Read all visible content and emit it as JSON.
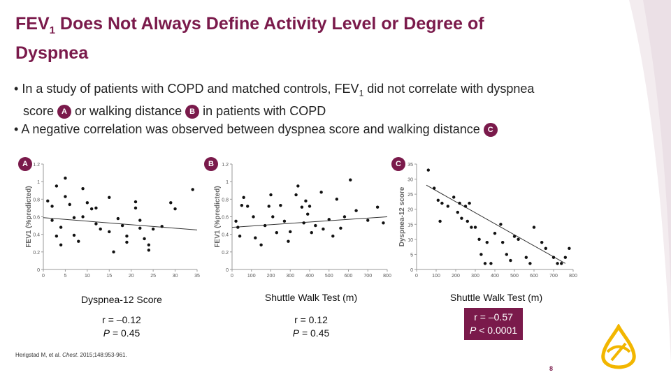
{
  "slide": {
    "title_main": "FEV",
    "title_sub": "1",
    "title_rest": " Does Not Always Define Activity Level or Degree of",
    "title_line2": "Dyspnea",
    "bullet1": {
      "bullet": "•",
      "part1": "In a study of patients with COPD and matched controls, FEV",
      "sub": "1",
      "part2": " did not correlate with dyspnea",
      "line2a": "score",
      "line2b": "or walking distance",
      "line2c": "in patients with COPD"
    },
    "bullet2": {
      "bullet": "•",
      "text": "A negative correlation was observed between dyspnea score and walking distance"
    },
    "badges": {
      "a": "A",
      "b": "B",
      "c": "C"
    },
    "citation_pre": "Herigstad M, et al. ",
    "citation_journal": "Chest",
    "citation_post": ". 2015;148:953-961.",
    "page_number": "8",
    "accent_color": "#7a1a4b",
    "logo_color": "#f2b600"
  },
  "chart_data": [
    {
      "type": "scatter",
      "badge": "A",
      "title": "",
      "xlabel": "Dyspnea-12 Score",
      "ylabel": "FEV1 (%predicted)",
      "xlim": [
        0,
        35
      ],
      "ylim": [
        0,
        1.2
      ],
      "x_ticks": [
        "0",
        "5",
        "10",
        "15",
        "20",
        "25",
        "30",
        "35"
      ],
      "y_ticks": [
        "0",
        "0.2",
        "0.4",
        "0.6",
        "0.8",
        "1",
        "1.2"
      ],
      "trend": [
        [
          0,
          0.59
        ],
        [
          35,
          0.45
        ]
      ],
      "points": [
        [
          1,
          0.78
        ],
        [
          2,
          0.72
        ],
        [
          2,
          0.56
        ],
        [
          3,
          0.95
        ],
        [
          3,
          0.38
        ],
        [
          4,
          0.28
        ],
        [
          4,
          0.48
        ],
        [
          5,
          1.04
        ],
        [
          5,
          0.83
        ],
        [
          6,
          0.74
        ],
        [
          7,
          0.59
        ],
        [
          7,
          0.39
        ],
        [
          8,
          0.32
        ],
        [
          9,
          0.92
        ],
        [
          9,
          0.6
        ],
        [
          10,
          0.76
        ],
        [
          11,
          0.69
        ],
        [
          12,
          0.52
        ],
        [
          12,
          0.7
        ],
        [
          13,
          0.46
        ],
        [
          15,
          0.82
        ],
        [
          15,
          0.43
        ],
        [
          16,
          0.2
        ],
        [
          17,
          0.58
        ],
        [
          18,
          0.5
        ],
        [
          19,
          0.38
        ],
        [
          19,
          0.31
        ],
        [
          21,
          0.77
        ],
        [
          21,
          0.7
        ],
        [
          22,
          0.56
        ],
        [
          22,
          0.47
        ],
        [
          23,
          0.35
        ],
        [
          24,
          0.28
        ],
        [
          24,
          0.22
        ],
        [
          25,
          0.46
        ],
        [
          27,
          0.49
        ],
        [
          29,
          0.76
        ],
        [
          30,
          0.69
        ],
        [
          34,
          0.91
        ]
      ],
      "stat_r": "r = –0.12",
      "stat_p_label": "P",
      "stat_p_value": " = 0.45"
    },
    {
      "type": "scatter",
      "badge": "B",
      "title": "",
      "xlabel": "Shuttle Walk Test (m)",
      "ylabel": "FEV1 (%predicted)",
      "xlim": [
        0,
        800
      ],
      "ylim": [
        0,
        1.2
      ],
      "x_ticks": [
        "0",
        "100",
        "200",
        "300",
        "400",
        "500",
        "600",
        "700",
        "800"
      ],
      "y_ticks": [
        "0",
        "0.2",
        "0.4",
        "0.6",
        "0.8",
        "1",
        "1.2"
      ],
      "trend": [
        [
          0,
          0.48
        ],
        [
          800,
          0.6
        ]
      ],
      "points": [
        [
          20,
          0.55
        ],
        [
          30,
          0.48
        ],
        [
          40,
          0.38
        ],
        [
          50,
          0.73
        ],
        [
          60,
          0.82
        ],
        [
          80,
          0.72
        ],
        [
          110,
          0.6
        ],
        [
          120,
          0.36
        ],
        [
          150,
          0.28
        ],
        [
          170,
          0.5
        ],
        [
          190,
          0.72
        ],
        [
          200,
          0.85
        ],
        [
          210,
          0.6
        ],
        [
          230,
          0.42
        ],
        [
          250,
          0.73
        ],
        [
          270,
          0.55
        ],
        [
          290,
          0.32
        ],
        [
          300,
          0.43
        ],
        [
          330,
          0.85
        ],
        [
          340,
          0.95
        ],
        [
          360,
          0.71
        ],
        [
          370,
          0.53
        ],
        [
          380,
          0.78
        ],
        [
          390,
          0.63
        ],
        [
          400,
          0.72
        ],
        [
          410,
          0.42
        ],
        [
          430,
          0.5
        ],
        [
          460,
          0.88
        ],
        [
          470,
          0.46
        ],
        [
          500,
          0.57
        ],
        [
          520,
          0.38
        ],
        [
          540,
          0.8
        ],
        [
          560,
          0.47
        ],
        [
          580,
          0.6
        ],
        [
          610,
          1.02
        ],
        [
          640,
          0.67
        ],
        [
          700,
          0.56
        ],
        [
          750,
          0.71
        ],
        [
          780,
          0.53
        ]
      ],
      "stat_r": "r = 0.12",
      "stat_p_label": "P",
      "stat_p_value": " = 0.45"
    },
    {
      "type": "scatter",
      "badge": "C",
      "title": "",
      "xlabel": "Shuttle Walk Test (m)",
      "ylabel": "Dyspnea-12 score",
      "xlim": [
        0,
        800
      ],
      "ylim": [
        0,
        35
      ],
      "x_ticks": [
        "0",
        "100",
        "200",
        "300",
        "400",
        "500",
        "600",
        "700",
        "800"
      ],
      "y_ticks": [
        "0",
        "5",
        "10",
        "15",
        "20",
        "25",
        "30",
        "35"
      ],
      "trend": [
        [
          50,
          28
        ],
        [
          760,
          2
        ]
      ],
      "points": [
        [
          60,
          33
        ],
        [
          90,
          27
        ],
        [
          110,
          23
        ],
        [
          120,
          16
        ],
        [
          130,
          22
        ],
        [
          160,
          21
        ],
        [
          190,
          24
        ],
        [
          210,
          19
        ],
        [
          220,
          22
        ],
        [
          230,
          17
        ],
        [
          250,
          21
        ],
        [
          260,
          16
        ],
        [
          270,
          22
        ],
        [
          280,
          14
        ],
        [
          300,
          14
        ],
        [
          320,
          10
        ],
        [
          330,
          5
        ],
        [
          350,
          2
        ],
        [
          360,
          9
        ],
        [
          380,
          2
        ],
        [
          400,
          12
        ],
        [
          430,
          15
        ],
        [
          440,
          9
        ],
        [
          460,
          5
        ],
        [
          480,
          3
        ],
        [
          500,
          11
        ],
        [
          520,
          10
        ],
        [
          560,
          4
        ],
        [
          580,
          2
        ],
        [
          600,
          14
        ],
        [
          640,
          9
        ],
        [
          660,
          7
        ],
        [
          700,
          4
        ],
        [
          720,
          2
        ],
        [
          740,
          2
        ],
        [
          760,
          4
        ],
        [
          780,
          7
        ]
      ],
      "stat_r": "r = –0.57",
      "stat_p_label": "P",
      "stat_p_value": " < 0.0001"
    }
  ]
}
